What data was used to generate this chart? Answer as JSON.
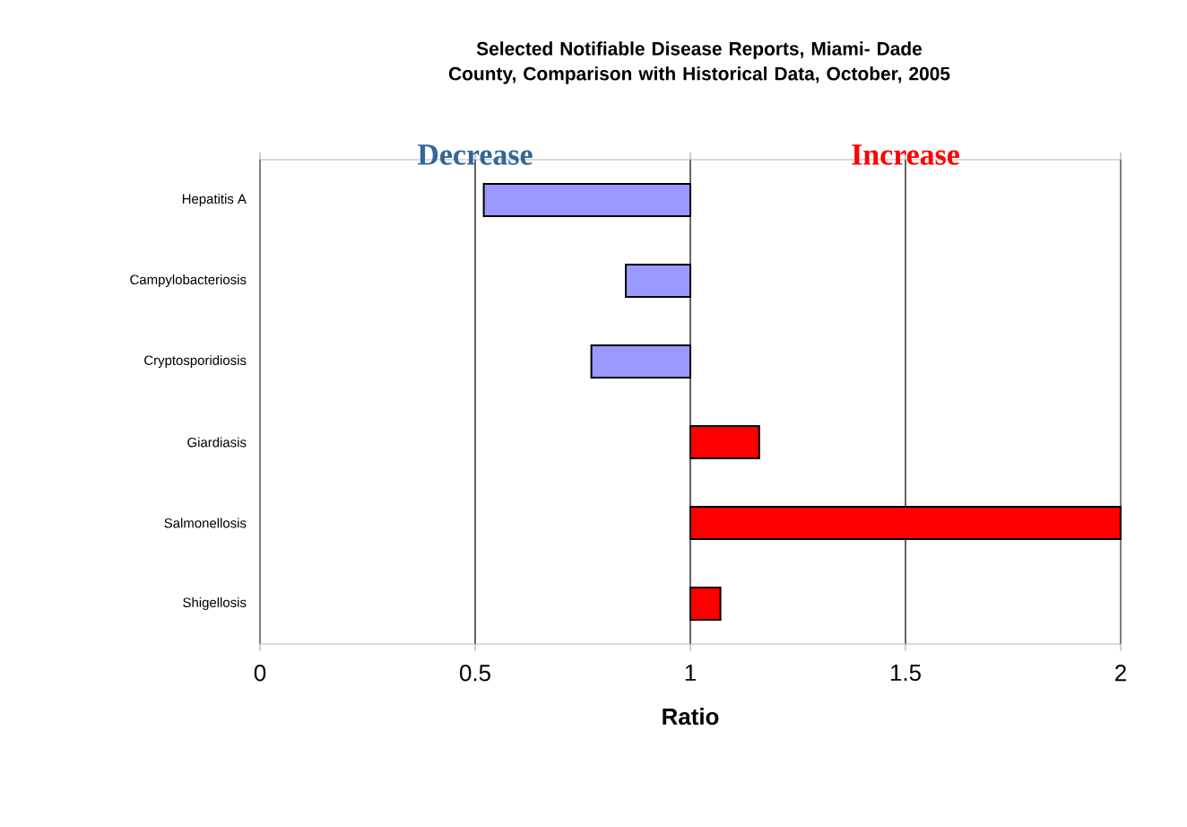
{
  "chart_data": {
    "type": "bar",
    "orientation": "horizontal",
    "title": "Selected Notifiable Disease Reports, Miami- Dade County, Comparison with Historical Data, October, 2005",
    "xlabel": "Ratio",
    "categories": [
      "Hepatitis A",
      "Campylobacteriosis",
      "Cryptosporidiosis",
      "Giardiasis",
      "Salmonellosis",
      "Shigellosis"
    ],
    "base": [
      1,
      1,
      1,
      1,
      1,
      1
    ],
    "values": [
      -0.48,
      -0.15,
      -0.23,
      0.16,
      1.0,
      0.07
    ],
    "colors": [
      "#9999ff",
      "#9999ff",
      "#9999ff",
      "#ff0000",
      "#ff0000",
      "#ff0000"
    ],
    "xlim": [
      0,
      2
    ],
    "xticks": [
      0,
      0.5,
      1,
      1.5,
      2
    ],
    "grid": "x",
    "annotations": [
      "Decrease",
      "Increase"
    ]
  }
}
